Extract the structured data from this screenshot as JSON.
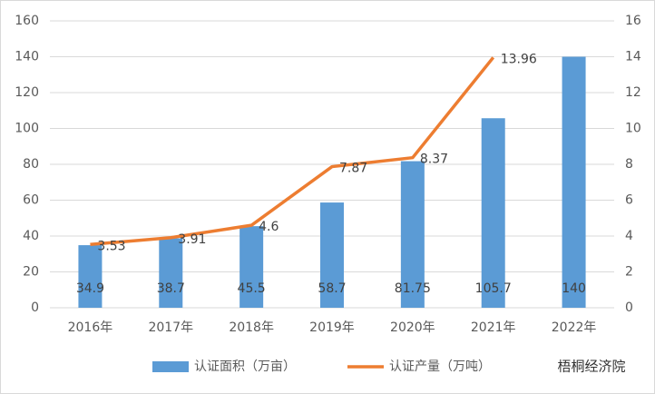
{
  "chart_data": {
    "type": "bar_line",
    "categories": [
      "2016年",
      "2017年",
      "2018年",
      "2019年",
      "2020年",
      "2021年",
      "2022年"
    ],
    "series": [
      {
        "name": "认证面积（万亩）",
        "type": "bar",
        "color": "#5b9bd5",
        "axis": "y",
        "values": [
          34.9,
          38.7,
          45.5,
          58.7,
          81.75,
          105.7,
          140
        ]
      },
      {
        "name": "认证产量（万吨）",
        "type": "line",
        "color": "#ed7d31",
        "axis": "y2",
        "values": [
          3.53,
          3.91,
          4.6,
          7.87,
          8.37,
          13.96,
          null
        ]
      }
    ],
    "ylim": [
      0,
      160
    ],
    "yticks": [
      0,
      20,
      40,
      60,
      80,
      100,
      120,
      140,
      160
    ],
    "y2lim": [
      0,
      16
    ],
    "y2ticks": [
      0,
      2,
      4,
      6,
      8,
      10,
      12,
      14,
      16
    ],
    "grid": true,
    "legend": "bottom",
    "source": "梧桐经济院"
  }
}
